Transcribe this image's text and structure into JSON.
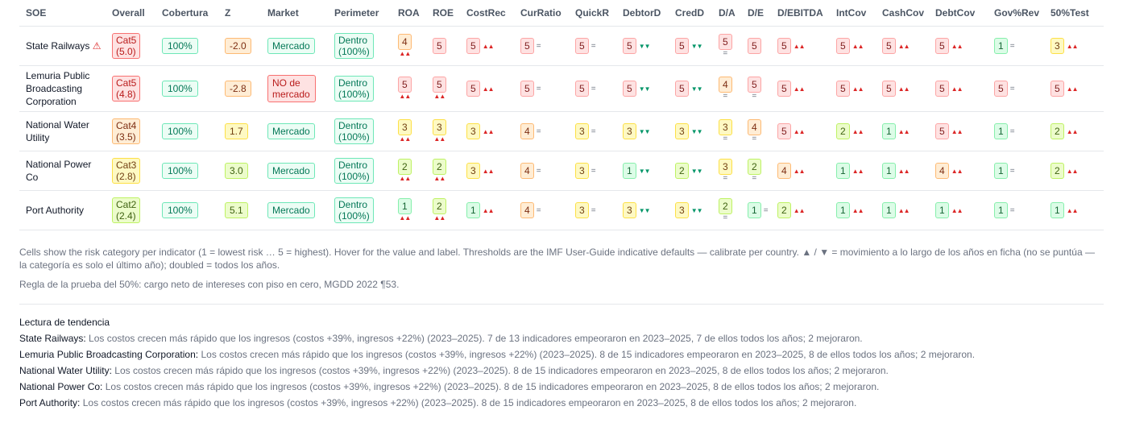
{
  "headers": [
    "SOE",
    "Overall",
    "Cobertura",
    "Z",
    "Market",
    "Perimeter",
    "ROA",
    "ROE",
    "CostRec",
    "CurRatio",
    "QuickR",
    "DebtorD",
    "CredD",
    "D/A",
    "D/E",
    "D/EBITDA",
    "IntCov",
    "CashCov",
    "DebtCov",
    "Gov%Rev",
    "50%Test"
  ],
  "rows": [
    {
      "name": "State Railways",
      "warn": "⚠",
      "overall": {
        "label": "Cat5",
        "score": "(5.0)",
        "cat": 5
      },
      "cobertura": "100%",
      "z": {
        "value": "-2.0",
        "cat": 4
      },
      "market": {
        "label": "Mercado",
        "type": "g"
      },
      "perimeter": {
        "label": "Dentro",
        "sub": "(100%)"
      },
      "cells": [
        {
          "v": "4",
          "c": 4,
          "t": "▲▲",
          "s": 1
        },
        {
          "v": "5",
          "c": 5,
          "t": "",
          "s": 0
        },
        {
          "v": "5",
          "c": 5,
          "t": "▲▲"
        },
        {
          "v": "5",
          "c": 5,
          "t": "="
        },
        {
          "v": "5",
          "c": 5,
          "t": "="
        },
        {
          "v": "5",
          "c": 5,
          "t": "▼▼"
        },
        {
          "v": "5",
          "c": 5,
          "t": "▼▼"
        },
        {
          "v": "5",
          "c": 5,
          "t": "=",
          "s": 1
        },
        {
          "v": "5",
          "c": 5,
          "t": ""
        },
        {
          "v": "5",
          "c": 5,
          "t": "▲▲"
        },
        {
          "v": "5",
          "c": 5,
          "t": "▲▲"
        },
        {
          "v": "5",
          "c": 5,
          "t": "▲▲"
        },
        {
          "v": "5",
          "c": 5,
          "t": "▲▲"
        },
        {
          "v": "1",
          "c": 1,
          "t": "="
        },
        {
          "v": "3",
          "c": 3,
          "t": "▲▲"
        }
      ]
    },
    {
      "name": "Lemuria Public Broadcasting Corporation",
      "warn": "",
      "overall": {
        "label": "Cat5",
        "score": "(4.8)",
        "cat": 5
      },
      "cobertura": "100%",
      "z": {
        "value": "-2.8",
        "cat": 4
      },
      "market": {
        "label": "NO de mercado",
        "type": "r"
      },
      "perimeter": {
        "label": "Dentro",
        "sub": "(100%)"
      },
      "cells": [
        {
          "v": "5",
          "c": 5,
          "t": "▲▲",
          "s": 1
        },
        {
          "v": "5",
          "c": 5,
          "t": "▲▲",
          "s": 1
        },
        {
          "v": "5",
          "c": 5,
          "t": "▲▲"
        },
        {
          "v": "5",
          "c": 5,
          "t": "="
        },
        {
          "v": "5",
          "c": 5,
          "t": "="
        },
        {
          "v": "5",
          "c": 5,
          "t": "▼▼"
        },
        {
          "v": "5",
          "c": 5,
          "t": "▼▼"
        },
        {
          "v": "4",
          "c": 4,
          "t": "=",
          "s": 1
        },
        {
          "v": "5",
          "c": 5,
          "t": "=",
          "s": 1
        },
        {
          "v": "5",
          "c": 5,
          "t": "▲▲"
        },
        {
          "v": "5",
          "c": 5,
          "t": "▲▲"
        },
        {
          "v": "5",
          "c": 5,
          "t": "▲▲"
        },
        {
          "v": "5",
          "c": 5,
          "t": "▲▲"
        },
        {
          "v": "5",
          "c": 5,
          "t": "="
        },
        {
          "v": "5",
          "c": 5,
          "t": "▲▲"
        }
      ]
    },
    {
      "name": "National Water Utility",
      "warn": "",
      "overall": {
        "label": "Cat4",
        "score": "(3.5)",
        "cat": 4
      },
      "cobertura": "100%",
      "z": {
        "value": "1.7",
        "cat": 3
      },
      "market": {
        "label": "Mercado",
        "type": "g"
      },
      "perimeter": {
        "label": "Dentro",
        "sub": "(100%)"
      },
      "cells": [
        {
          "v": "3",
          "c": 3,
          "t": "▲▲",
          "s": 1
        },
        {
          "v": "3",
          "c": 3,
          "t": "▲▲",
          "s": 1
        },
        {
          "v": "3",
          "c": 3,
          "t": "▲▲"
        },
        {
          "v": "4",
          "c": 4,
          "t": "="
        },
        {
          "v": "3",
          "c": 3,
          "t": "="
        },
        {
          "v": "3",
          "c": 3,
          "t": "▼▼"
        },
        {
          "v": "3",
          "c": 3,
          "t": "▼▼"
        },
        {
          "v": "3",
          "c": 3,
          "t": "=",
          "s": 1
        },
        {
          "v": "4",
          "c": 4,
          "t": "=",
          "s": 1
        },
        {
          "v": "5",
          "c": 5,
          "t": "▲▲"
        },
        {
          "v": "2",
          "c": 2,
          "t": "▲▲"
        },
        {
          "v": "1",
          "c": 1,
          "t": "▲▲"
        },
        {
          "v": "5",
          "c": 5,
          "t": "▲▲"
        },
        {
          "v": "1",
          "c": 1,
          "t": "="
        },
        {
          "v": "2",
          "c": 2,
          "t": "▲▲"
        }
      ]
    },
    {
      "name": "National Power Co",
      "warn": "",
      "overall": {
        "label": "Cat3",
        "score": "(2.8)",
        "cat": 3
      },
      "cobertura": "100%",
      "z": {
        "value": "3.0",
        "cat": 2
      },
      "market": {
        "label": "Mercado",
        "type": "g"
      },
      "perimeter": {
        "label": "Dentro",
        "sub": "(100%)"
      },
      "cells": [
        {
          "v": "2",
          "c": 2,
          "t": "▲▲",
          "s": 1
        },
        {
          "v": "2",
          "c": 2,
          "t": "▲▲",
          "s": 1
        },
        {
          "v": "3",
          "c": 3,
          "t": "▲▲"
        },
        {
          "v": "4",
          "c": 4,
          "t": "="
        },
        {
          "v": "3",
          "c": 3,
          "t": "="
        },
        {
          "v": "1",
          "c": 1,
          "t": "▼▼"
        },
        {
          "v": "2",
          "c": 2,
          "t": "▼▼"
        },
        {
          "v": "3",
          "c": 3,
          "t": "=",
          "s": 1
        },
        {
          "v": "2",
          "c": 2,
          "t": "=",
          "s": 1
        },
        {
          "v": "4",
          "c": 4,
          "t": "▲▲"
        },
        {
          "v": "1",
          "c": 1,
          "t": "▲▲"
        },
        {
          "v": "1",
          "c": 1,
          "t": "▲▲"
        },
        {
          "v": "4",
          "c": 4,
          "t": "▲▲"
        },
        {
          "v": "1",
          "c": 1,
          "t": "="
        },
        {
          "v": "2",
          "c": 2,
          "t": "▲▲"
        }
      ]
    },
    {
      "name": "Port Authority",
      "warn": "",
      "overall": {
        "label": "Cat2",
        "score": "(2.4)",
        "cat": 2
      },
      "cobertura": "100%",
      "z": {
        "value": "5.1",
        "cat": 2
      },
      "market": {
        "label": "Mercado",
        "type": "g"
      },
      "perimeter": {
        "label": "Dentro",
        "sub": "(100%)"
      },
      "cells": [
        {
          "v": "1",
          "c": 1,
          "t": "▲▲",
          "s": 1
        },
        {
          "v": "2",
          "c": 2,
          "t": "▲▲",
          "s": 1
        },
        {
          "v": "1",
          "c": 1,
          "t": "▲▲"
        },
        {
          "v": "4",
          "c": 4,
          "t": "="
        },
        {
          "v": "3",
          "c": 3,
          "t": "="
        },
        {
          "v": "3",
          "c": 3,
          "t": "▼▼"
        },
        {
          "v": "3",
          "c": 3,
          "t": "▼▼"
        },
        {
          "v": "2",
          "c": 2,
          "t": "=",
          "s": 1
        },
        {
          "v": "1",
          "c": 1,
          "t": "="
        },
        {
          "v": "2",
          "c": 2,
          "t": "▲▲"
        },
        {
          "v": "1",
          "c": 1,
          "t": "▲▲"
        },
        {
          "v": "1",
          "c": 1,
          "t": "▲▲"
        },
        {
          "v": "1",
          "c": 1,
          "t": "▲▲"
        },
        {
          "v": "1",
          "c": 1,
          "t": "="
        },
        {
          "v": "1",
          "c": 1,
          "t": "▲▲"
        }
      ]
    }
  ],
  "notes": {
    "legend": "Cells show the risk category per indicator (1 = lowest risk … 5 = highest). Hover for the value and label. Thresholds are the IMF User-Guide indicative defaults — calibrate per country. ▲ / ▼ = movimiento a lo largo de los años en ficha (no se puntúa — la categoría es solo el último año); doubled = todos los años.",
    "rule": "Regla de la prueba del 50%: cargo neto de intereses con piso en cero, MGDD 2022 ¶53."
  },
  "trend": {
    "title": "Lectura de tendencia",
    "lines": [
      {
        "name": "State Railways:",
        "text": "Los costos crecen más rápido que los ingresos (costos +39%, ingresos +22%) (2023–2025). 7 de 13 indicadores empeoraron en 2023–2025, 7 de ellos todos los años; 2 mejoraron."
      },
      {
        "name": "Lemuria Public Broadcasting Corporation:",
        "text": "Los costos crecen más rápido que los ingresos (costos +39%, ingresos +22%) (2023–2025). 8 de 15 indicadores empeoraron en 2023–2025, 8 de ellos todos los años; 2 mejoraron."
      },
      {
        "name": "National Water Utility:",
        "text": "Los costos crecen más rápido que los ingresos (costos +39%, ingresos +22%) (2023–2025). 8 de 15 indicadores empeoraron en 2023–2025, 8 de ellos todos los años; 2 mejoraron."
      },
      {
        "name": "National Power Co:",
        "text": "Los costos crecen más rápido que los ingresos (costos +39%, ingresos +22%) (2023–2025). 8 de 15 indicadores empeoraron en 2023–2025, 8 de ellos todos los años; 2 mejoraron."
      },
      {
        "name": "Port Authority:",
        "text": "Los costos crecen más rápido que los ingresos (costos +39%, ingresos +22%) (2023–2025). 8 de 15 indicadores empeoraron en 2023–2025, 8 de ellos todos los años; 2 mejoraron."
      }
    ]
  }
}
